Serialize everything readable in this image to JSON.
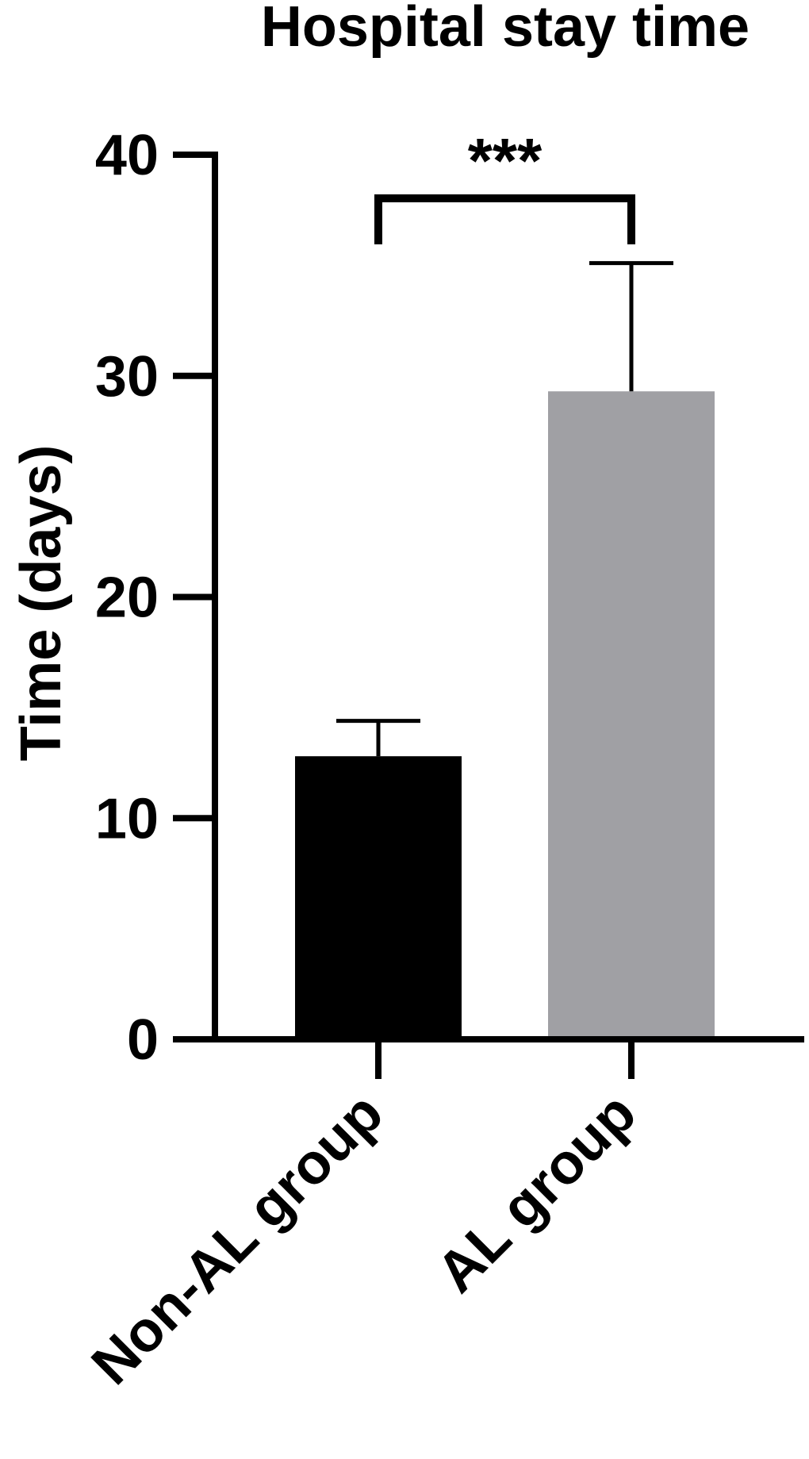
{
  "chart_data": {
    "type": "bar",
    "title": "Hospital stay time",
    "xlabel": "",
    "ylabel": "Time (days)",
    "ylim": [
      0,
      40
    ],
    "yticks": [
      0,
      10,
      20,
      30,
      40
    ],
    "categories": [
      "Non-AL group",
      "AL group"
    ],
    "values": [
      12.8,
      29.3
    ],
    "errors": [
      1.6,
      5.8
    ],
    "bar_colors": [
      "#000000",
      "#a0a0a4"
    ],
    "significance": {
      "label": "***",
      "between": [
        0,
        1
      ]
    },
    "grid": false,
    "legend": "none"
  }
}
